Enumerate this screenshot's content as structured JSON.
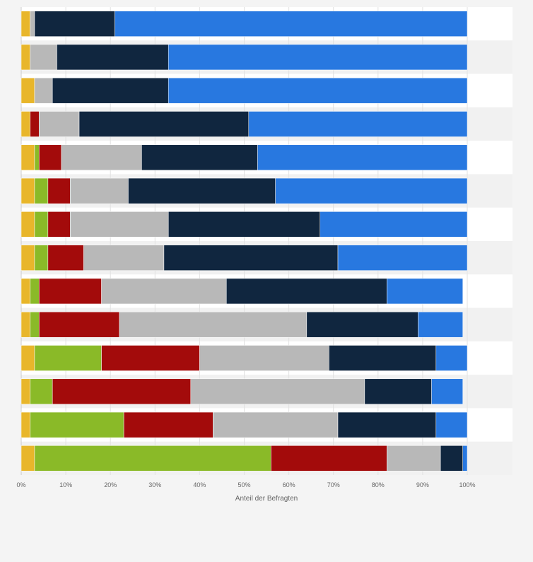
{
  "colors": {
    "background": "#f4f4f4",
    "plot_band_light": "#ffffff",
    "plot_band_dark": "#f1f1f1",
    "grid": "#e2e2e2",
    "axis_text": "#666666",
    "segment_yellow": "#e8b62b",
    "segment_green": "#8aba28",
    "segment_red": "#a30b0b",
    "segment_gray": "#b8b8b8",
    "segment_navy": "#10263f",
    "segment_blue": "#2878e0"
  },
  "chart_data": {
    "type": "bar",
    "orientation": "horizontal",
    "stacked": true,
    "categories": [
      "",
      "",
      "",
      "",
      "",
      "",
      "",
      "",
      "",
      "",
      "",
      "",
      "",
      ""
    ],
    "series": [
      {
        "color": "#e8b62b",
        "values": [
          2,
          2,
          3,
          2,
          3,
          3,
          3,
          3,
          2,
          2,
          3,
          2,
          2,
          3
        ]
      },
      {
        "color": "#8aba28",
        "values": [
          0,
          0,
          0,
          0,
          1,
          3,
          3,
          3,
          2,
          2,
          15,
          5,
          21,
          53
        ]
      },
      {
        "color": "#a30b0b",
        "values": [
          0,
          0,
          0,
          2,
          5,
          5,
          5,
          8,
          14,
          18,
          22,
          31,
          20,
          26
        ]
      },
      {
        "color": "#b8b8b8",
        "values": [
          1,
          6,
          4,
          9,
          18,
          13,
          22,
          18,
          28,
          42,
          29,
          39,
          28,
          12
        ]
      },
      {
        "color": "#10263f",
        "values": [
          18,
          25,
          26,
          38,
          26,
          33,
          34,
          39,
          36,
          25,
          24,
          15,
          22,
          5
        ]
      },
      {
        "color": "#2878e0",
        "values": [
          79,
          67,
          67,
          49,
          47,
          43,
          33,
          29,
          17,
          10,
          7,
          7,
          7,
          1
        ]
      }
    ],
    "xlim": [
      0,
      100
    ],
    "x_ticks": [
      "0%",
      "10%",
      "20%",
      "30%",
      "40%",
      "50%",
      "60%",
      "70%",
      "80%",
      "90%",
      "100%"
    ],
    "xlabel": "Anteil der Befragten",
    "legend": false,
    "grid": true
  }
}
